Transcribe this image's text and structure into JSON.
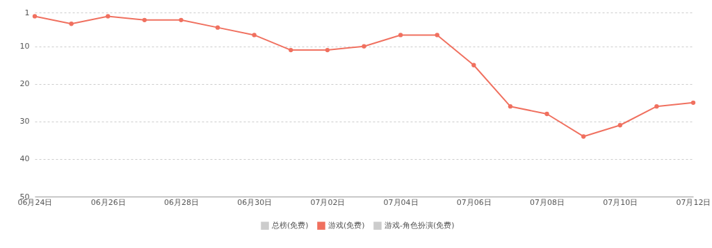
{
  "chart_data": {
    "type": "line",
    "categories": [
      "06月24日",
      null,
      "06月26日",
      null,
      "06月28日",
      null,
      "06月30日",
      null,
      "07月02日",
      null,
      "07月04日",
      null,
      "07月06日",
      null,
      "07月08日",
      null,
      "07月10日",
      null,
      "07月12日"
    ],
    "series": [
      {
        "name": "总榜(免费)",
        "color": "#cccccc",
        "values": [
          null,
          null,
          null,
          null,
          null,
          null,
          null,
          null,
          null,
          null,
          null,
          null,
          null,
          null,
          null,
          null,
          null,
          null,
          null
        ]
      },
      {
        "name": "游戏(免费)",
        "color": "#f0705f",
        "values": [
          2,
          4,
          2,
          3,
          3,
          5,
          7,
          11,
          11,
          10,
          7,
          7,
          15,
          26,
          28,
          34,
          31,
          26,
          25
        ]
      },
      {
        "name": "游戏-角色扮演(免费)",
        "color": "#cccccc",
        "values": [
          null,
          null,
          null,
          null,
          null,
          null,
          null,
          null,
          null,
          null,
          null,
          null,
          null,
          null,
          null,
          null,
          null,
          null,
          null
        ]
      }
    ],
    "ylim": [
      50,
      1
    ],
    "yticks": [
      1,
      10,
      20,
      30,
      40,
      50
    ],
    "grid": "y",
    "legend": "bottom",
    "marker": "circle",
    "line_style": "solid"
  }
}
